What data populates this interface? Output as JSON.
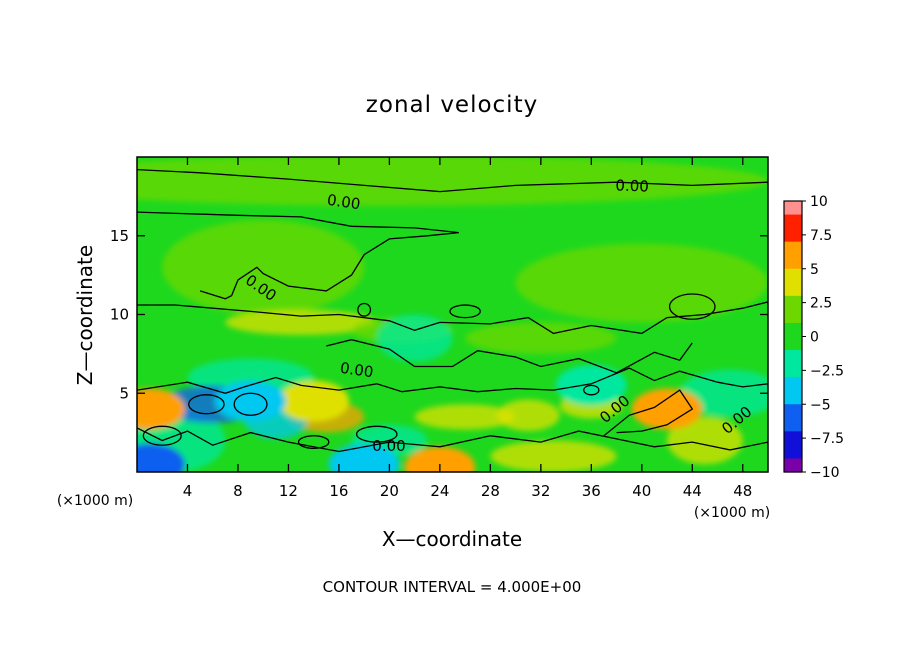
{
  "chart_data": {
    "type": "heatmap",
    "title": "zonal velocity",
    "xlabel": "X—coordinate",
    "ylabel": "Z—coordinate",
    "x_unit_label": "(×1000 m)",
    "y_unit_label": "(×1000 m)",
    "xlim": [
      0,
      50
    ],
    "ylim": [
      0,
      20
    ],
    "x_ticks": [
      4,
      8,
      12,
      16,
      20,
      24,
      28,
      32,
      36,
      40,
      44,
      48
    ],
    "y_ticks": [
      5,
      10,
      15
    ],
    "contour_label_value": "0.00",
    "contour_labels": [
      "0.00",
      "0.00",
      "0.00",
      "0.00",
      "0.00",
      "0.00",
      "0.00"
    ],
    "footnote": "CONTOUR INTERVAL = 4.000E+00",
    "colorbar": {
      "min": -10,
      "max": 10,
      "tick_values": [
        10,
        7.5,
        5,
        2.5,
        0,
        -2.5,
        -5,
        -7.5,
        -10
      ],
      "tick_labels": [
        "10",
        "7.5",
        "5",
        "2.5",
        "0",
        "−2.5",
        "−5",
        "−7.5",
        "−10"
      ]
    },
    "notable_features": [
      {
        "x": 42,
        "z": 4.0,
        "value": 6
      },
      {
        "x": 1,
        "z": 4.0,
        "value": 5
      },
      {
        "x": 14,
        "z": 4.5,
        "value": 4
      },
      {
        "x": 24,
        "z": 0.3,
        "value": 6
      },
      {
        "x": 1,
        "z": 0.5,
        "value": -7
      },
      {
        "x": 9,
        "z": 4.5,
        "value": -4
      },
      {
        "x": 18,
        "z": 0.5,
        "value": -4
      },
      {
        "x": 36,
        "z": 5.5,
        "value": -3
      }
    ]
  },
  "colors": {
    "background": "#ffffff",
    "axis": "#000000",
    "contour": "#000000",
    "colorscale": [
      "#7a00a8",
      "#1010d8",
      "#0f5ff0",
      "#00c8f0",
      "#00e8a0",
      "#1ed81e",
      "#6cd800",
      "#e0e000",
      "#ffa000",
      "#ff2000",
      "#ff9090"
    ]
  }
}
